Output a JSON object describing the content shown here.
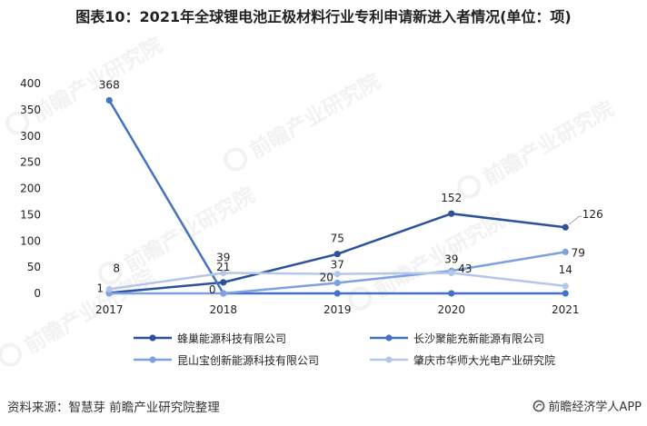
{
  "chart_data": {
    "type": "line",
    "title": "图表10：2021年全球锂电池正极材料行业专利申请新进入者情况(单位：项)",
    "categories": [
      "2017",
      "2018",
      "2019",
      "2020",
      "2021"
    ],
    "ylim": [
      0,
      400
    ],
    "yticks": [
      0,
      50,
      100,
      150,
      200,
      250,
      300,
      350,
      400
    ],
    "grid": false,
    "legend_position": "bottom",
    "series": [
      {
        "name": "蜂巢能源科技有限公司",
        "color": "#2D519C",
        "values": [
          1,
          21,
          75,
          152,
          126
        ],
        "labeled": [
          true,
          true,
          true,
          true,
          true
        ]
      },
      {
        "name": "长沙聚能充新能源有限公司",
        "color": "#4472C4",
        "values": [
          368,
          0,
          0,
          0,
          0
        ],
        "labeled": [
          true,
          true,
          false,
          false,
          false
        ]
      },
      {
        "name": "昆山宝创新能源科技有限公司",
        "color": "#7EA1E0",
        "values": [
          0,
          0,
          20,
          43,
          79
        ],
        "labeled": [
          false,
          false,
          true,
          true,
          true
        ]
      },
      {
        "name": "肇庆市华师大光电产业研究院",
        "color": "#B4C7EB",
        "values": [
          8,
          39,
          37,
          39,
          14
        ],
        "labeled": [
          true,
          true,
          true,
          true,
          true
        ]
      }
    ]
  },
  "footer": {
    "source": "资料来源：智慧芽 前瞻产业研究院整理",
    "app_name": "前瞻经济学人APP",
    "app_icon": "qianzhan-logo-icon"
  },
  "watermark": {
    "text": "前瞻产业研究院",
    "icon": "qianzhan-logo-icon"
  }
}
